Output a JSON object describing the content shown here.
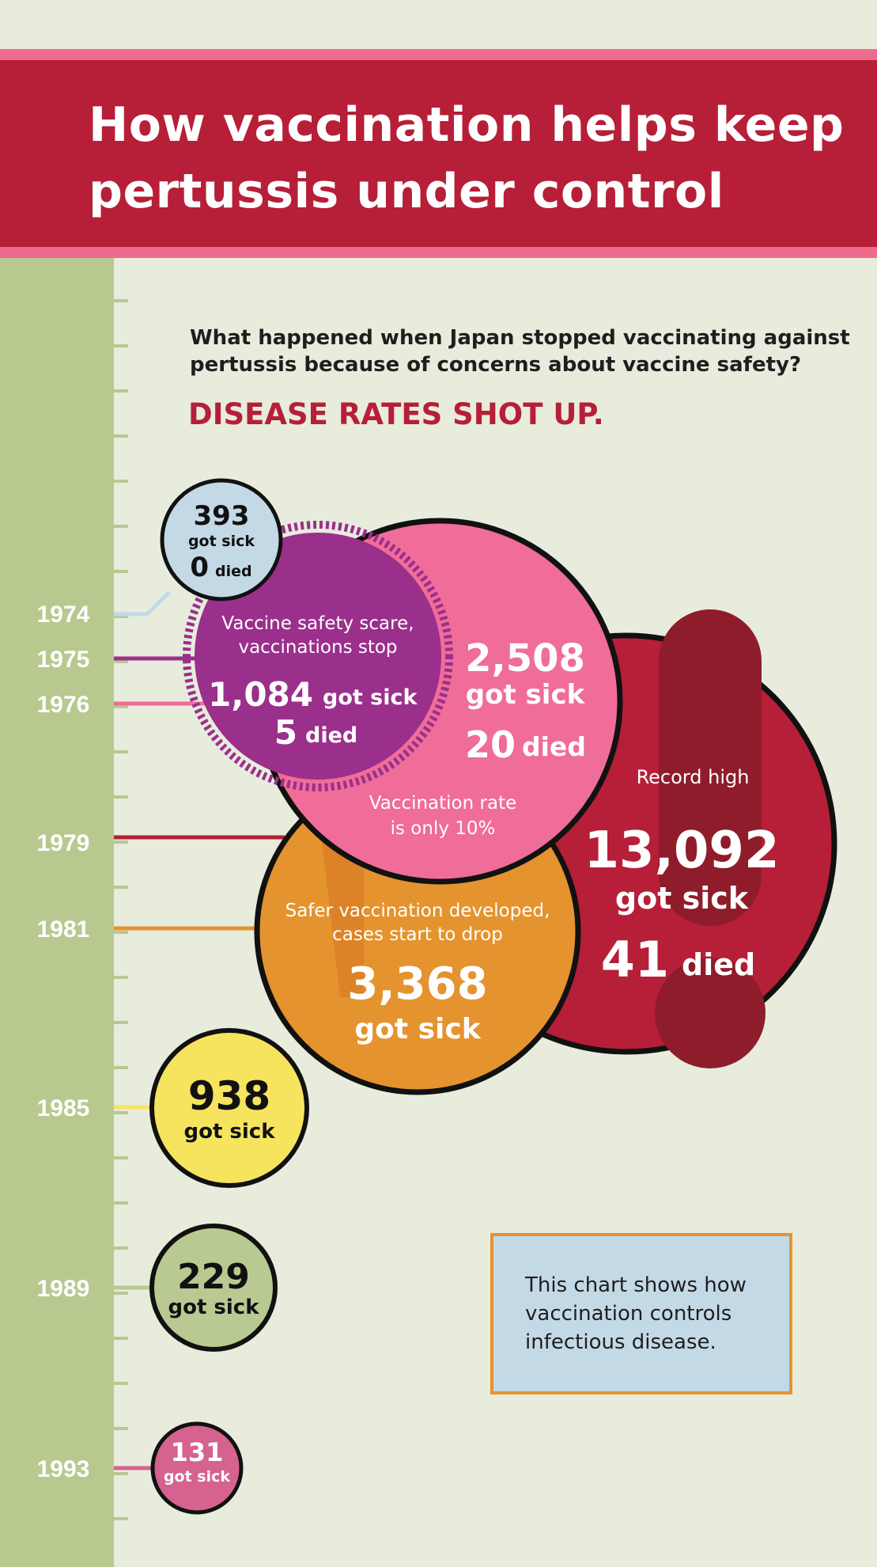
{
  "header": {
    "title": "How vaccination helps keep pertussis under control"
  },
  "intro": {
    "question": "What happened when Japan stopped vaccinating against pertussis because of concerns about vaccine safety?",
    "headline": "DISEASE RATES SHOT UP."
  },
  "note": "This chart shows how vaccination controls infectious disease.",
  "colors": {
    "header": "#b61f37",
    "header_trim": "#ee6b8e",
    "background": "#e7ecdd",
    "timeline": "#b8c990",
    "c1974": "#c3d9e6",
    "c1975": "#9b2f8c",
    "c1976": "#ef6d98",
    "c1979": "#b61f37",
    "c1981": "#e4932f",
    "c1985": "#f7e45e",
    "c1989": "#b9c992",
    "c1993": "#d6628f"
  },
  "chart_data": {
    "type": "bubble-timeline",
    "x_label": "",
    "years": [
      "1974",
      "1975",
      "1976",
      "1979",
      "1981",
      "1985",
      "1989",
      "1993"
    ],
    "series": [
      {
        "name": "got sick",
        "values": [
          393,
          1084,
          2508,
          13092,
          3368,
          938,
          229,
          131
        ]
      },
      {
        "name": "died",
        "values": [
          0,
          5,
          20,
          41,
          null,
          null,
          null,
          null
        ]
      }
    ],
    "events": [
      {
        "year": "1975",
        "text": "Vaccine safety scare, vaccinations stop"
      },
      {
        "year": "1976",
        "text": "Vaccination rate is only 10%"
      },
      {
        "year": "1979",
        "text": "Record high"
      },
      {
        "year": "1981",
        "text": "Safer vaccination developed, cases start to drop"
      }
    ],
    "labels": {
      "sick": "got sick",
      "died": "died",
      "v1974": "393",
      "d1974": "0",
      "v1975": "1,084",
      "d1975": "5",
      "v1976": "2,508",
      "d1976": "20",
      "v1979": "13,092",
      "d1979": "41",
      "v1981": "3,368",
      "v1985": "938",
      "v1989": "229",
      "v1993": "131"
    }
  }
}
